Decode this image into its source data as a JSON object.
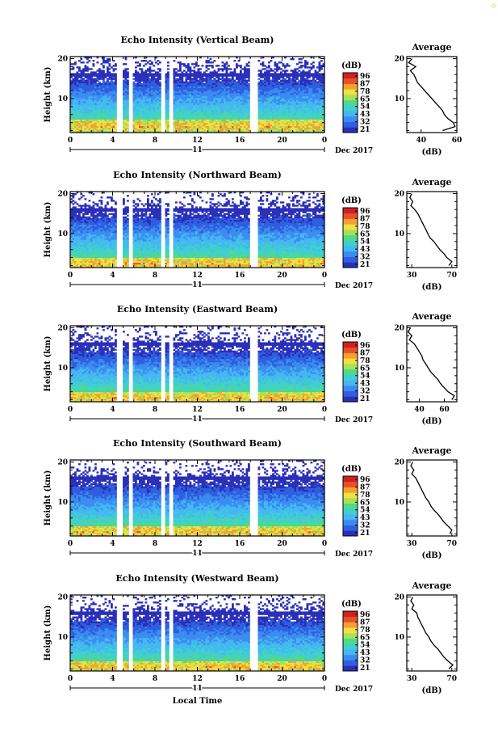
{
  "chart_data": [
    {
      "type": "heatmap",
      "title": "Echo Intensity (Vertical Beam)",
      "ylabel": "Height (km)",
      "xlabel": "",
      "x_ticks": [
        "0",
        "4",
        "8",
        "12",
        "16",
        "20",
        "0"
      ],
      "y_ticks": [
        "20",
        "10"
      ],
      "xlim": [
        0,
        24
      ],
      "ylim": [
        1.5,
        20.5
      ],
      "date_marker": "11",
      "month_year": "Dec 2017",
      "colorbar": {
        "label": "(dB)",
        "ticks": [
          "96",
          "87",
          "78",
          "65",
          "54",
          "43",
          "32",
          "21"
        ]
      },
      "strong_layer_center_km": 3.0,
      "avg_profile": {
        "title": "Average",
        "xlabel": "(dB)",
        "x_ticks": [
          "40",
          "60"
        ],
        "xlim": [
          32,
          60
        ],
        "y_ticks": [
          "20",
          "10"
        ],
        "heights_km": [
          20,
          19,
          18,
          17,
          16,
          15,
          14,
          13,
          12,
          11,
          10,
          9,
          8,
          7,
          6,
          5,
          4,
          3,
          2
        ],
        "values_db": [
          35,
          33,
          37,
          34,
          36,
          37,
          38,
          40,
          42,
          44,
          46,
          48,
          50,
          52,
          53,
          55,
          58,
          59,
          52
        ]
      }
    },
    {
      "type": "heatmap",
      "title": "Echo Intensity (Northward Beam)",
      "ylabel": "Height (km)",
      "xlabel": "",
      "x_ticks": [
        "0",
        "4",
        "8",
        "12",
        "16",
        "20",
        "0"
      ],
      "y_ticks": [
        "20",
        "10"
      ],
      "xlim": [
        0,
        24
      ],
      "ylim": [
        1.5,
        20.5
      ],
      "date_marker": "11",
      "month_year": "Dec 2017",
      "colorbar": {
        "label": "(dB)",
        "ticks": [
          "96",
          "87",
          "78",
          "65",
          "54",
          "43",
          "32",
          "21"
        ]
      },
      "strong_layer_center_km": 2.5,
      "avg_profile": {
        "title": "Average",
        "xlabel": "(dB)",
        "x_ticks": [
          "30",
          "70"
        ],
        "xlim": [
          25,
          75
        ],
        "y_ticks": [
          "20",
          "10"
        ],
        "heights_km": [
          20,
          19,
          18,
          17,
          16,
          15,
          14,
          13,
          12,
          11,
          10,
          9,
          8,
          7,
          6,
          5,
          4,
          3,
          2
        ],
        "values_db": [
          30,
          28,
          31,
          29,
          33,
          36,
          38,
          40,
          42,
          44,
          46,
          48,
          52,
          55,
          58,
          62,
          65,
          70,
          67
        ]
      }
    },
    {
      "type": "heatmap",
      "title": "Echo Intensity (Eastward Beam)",
      "ylabel": "Height (km)",
      "xlabel": "",
      "x_ticks": [
        "0",
        "4",
        "8",
        "12",
        "16",
        "20",
        "0"
      ],
      "y_ticks": [
        "20",
        "10"
      ],
      "xlim": [
        0,
        24
      ],
      "ylim": [
        1.5,
        20.5
      ],
      "date_marker": "11",
      "month_year": "Dec 2017",
      "colorbar": {
        "label": "(dB)",
        "ticks": [
          "96",
          "87",
          "78",
          "65",
          "54",
          "43",
          "32",
          "21"
        ]
      },
      "strong_layer_center_km": 2.5,
      "avg_profile": {
        "title": "Average",
        "xlabel": "(dB)",
        "x_ticks": [
          "40",
          "60"
        ],
        "xlim": [
          30,
          70
        ],
        "y_ticks": [
          "20",
          "10"
        ],
        "heights_km": [
          20,
          19,
          18,
          17,
          16,
          15,
          14,
          13,
          12,
          11,
          10,
          9,
          8,
          7,
          6,
          5,
          4,
          3,
          2
        ],
        "values_db": [
          33,
          31,
          34,
          32,
          36,
          38,
          40,
          42,
          43,
          45,
          47,
          49,
          52,
          55,
          57,
          60,
          63,
          68,
          66
        ]
      }
    },
    {
      "type": "heatmap",
      "title": "Echo Intensity (Southward Beam)",
      "ylabel": "Height (km)",
      "xlabel": "",
      "x_ticks": [
        "0",
        "4",
        "8",
        "12",
        "16",
        "20",
        "0"
      ],
      "y_ticks": [
        "20",
        "10"
      ],
      "xlim": [
        0,
        24
      ],
      "ylim": [
        1.5,
        20.5
      ],
      "date_marker": "11",
      "month_year": "Dec 2017",
      "colorbar": {
        "label": "(dB)",
        "ticks": [
          "96",
          "87",
          "78",
          "65",
          "54",
          "43",
          "32",
          "21"
        ]
      },
      "strong_layer_center_km": 2.5,
      "avg_profile": {
        "title": "Average",
        "xlabel": "(dB)",
        "x_ticks": [
          "30",
          "70"
        ],
        "xlim": [
          25,
          75
        ],
        "y_ticks": [
          "20",
          "10"
        ],
        "heights_km": [
          20,
          19,
          18,
          17,
          16,
          15,
          14,
          13,
          12,
          11,
          10,
          9,
          8,
          7,
          6,
          5,
          4,
          3,
          2
        ],
        "values_db": [
          31,
          29,
          32,
          30,
          34,
          36,
          38,
          40,
          42,
          44,
          47,
          49,
          52,
          56,
          59,
          62,
          66,
          70,
          68
        ]
      }
    },
    {
      "type": "heatmap",
      "title": "Echo Intensity (Westward Beam)",
      "ylabel": "Height (km)",
      "xlabel": "Local Time",
      "x_ticks": [
        "0",
        "4",
        "8",
        "12",
        "16",
        "20",
        "0"
      ],
      "y_ticks": [
        "20",
        "10"
      ],
      "xlim": [
        0,
        24
      ],
      "ylim": [
        1.5,
        20.5
      ],
      "date_marker": "11",
      "month_year": "Dec 2017",
      "colorbar": {
        "label": "(dB)",
        "ticks": [
          "96",
          "87",
          "78",
          "65",
          "54",
          "43",
          "32",
          "21"
        ]
      },
      "strong_layer_center_km": 2.5,
      "avg_profile": {
        "title": "Average",
        "xlabel": "(dB)",
        "x_ticks": [
          "30",
          "70"
        ],
        "xlim": [
          25,
          75
        ],
        "y_ticks": [
          "20",
          "10"
        ],
        "heights_km": [
          20,
          19,
          18,
          17,
          16,
          15,
          14,
          13,
          12,
          11,
          10,
          9,
          8,
          7,
          6,
          5,
          4,
          3,
          2
        ],
        "values_db": [
          31,
          29,
          32,
          30,
          35,
          36,
          38,
          40,
          42,
          44,
          47,
          49,
          52,
          56,
          59,
          62,
          66,
          71,
          67
        ]
      }
    }
  ],
  "data_gaps_local_time": [
    [
      4.4,
      4.9
    ],
    [
      5.5,
      5.9
    ],
    [
      8.6,
      8.9
    ],
    [
      9.3,
      9.7
    ],
    [
      17.0,
      17.8
    ]
  ],
  "colormap": [
    "#2a2fb8",
    "#2f5fe0",
    "#3a8cf0",
    "#45b7f2",
    "#3fcfd0",
    "#4fd98a",
    "#a8e05a",
    "#f0e040",
    "#f5a030",
    "#e8502a",
    "#d02020"
  ]
}
